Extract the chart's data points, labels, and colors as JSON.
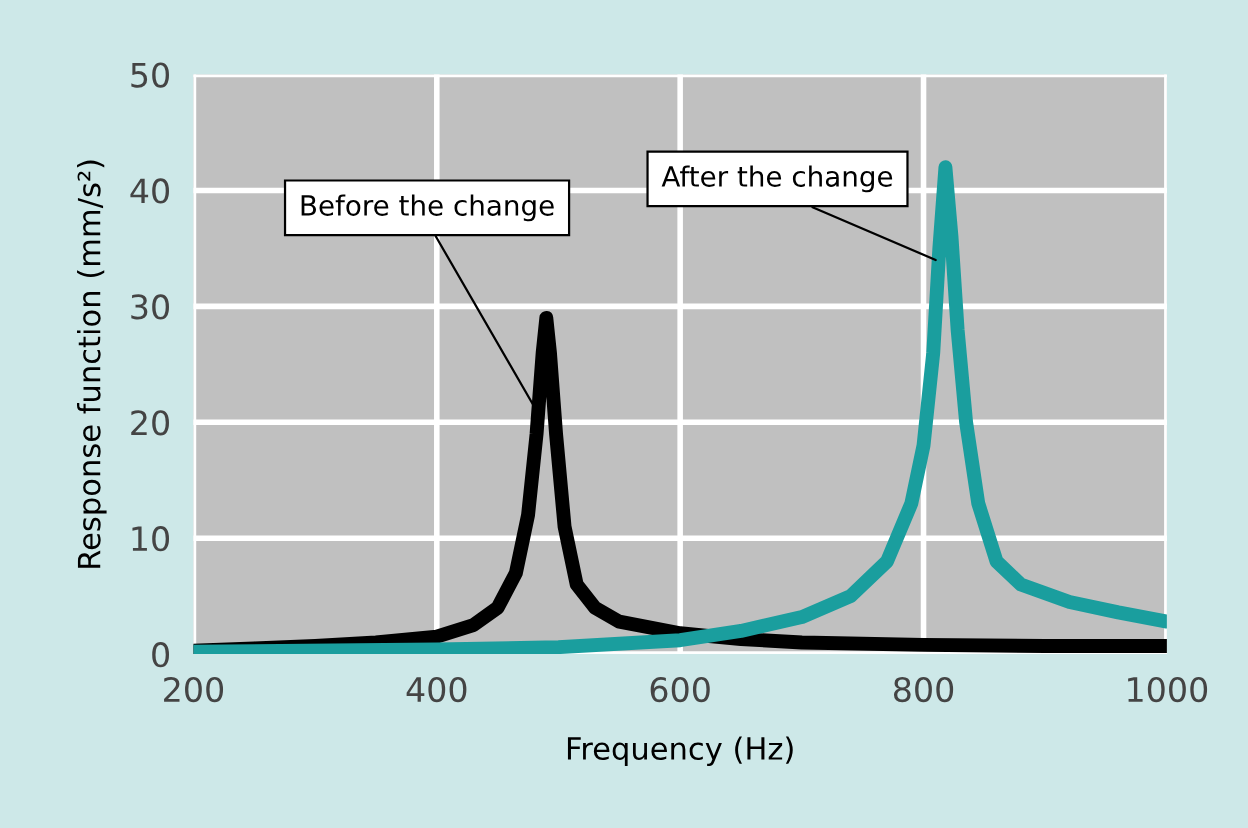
{
  "chart_data": {
    "type": "line",
    "xlabel": "Frequency (Hz)",
    "ylabel": "Response function (mm/s²)",
    "xlim": [
      200,
      1000
    ],
    "xticks": [
      200,
      400,
      600,
      800,
      1000
    ],
    "ylim": [
      0,
      50
    ],
    "yticks": [
      0,
      10,
      20,
      30,
      40,
      50
    ],
    "grid": true,
    "legend": false,
    "marker": "none",
    "line_style": "solid",
    "series": [
      {
        "name": "Before the change",
        "color": "#000000",
        "x": [
          200,
          250,
          300,
          350,
          400,
          430,
          450,
          465,
          475,
          482,
          487,
          490,
          493,
          498,
          505,
          515,
          530,
          550,
          600,
          650,
          700,
          800,
          900,
          1000
        ],
        "values": [
          0.3,
          0.5,
          0.7,
          1.0,
          1.5,
          2.5,
          4,
          7,
          12,
          19,
          26,
          29,
          26,
          19,
          11,
          6,
          4,
          2.8,
          1.8,
          1.3,
          1.0,
          0.8,
          0.7,
          0.7
        ]
      },
      {
        "name": "After the change",
        "color": "#1a9e9e",
        "x": [
          200,
          400,
          500,
          600,
          650,
          700,
          740,
          770,
          790,
          800,
          808,
          813,
          818,
          823,
          828,
          835,
          845,
          860,
          880,
          920,
          960,
          1000
        ],
        "values": [
          0.2,
          0.4,
          0.6,
          1.2,
          2,
          3.2,
          5,
          8,
          13,
          18,
          26,
          35,
          42,
          36,
          28,
          20,
          13,
          8,
          6,
          4.5,
          3.6,
          2.8
        ]
      }
    ]
  }
}
